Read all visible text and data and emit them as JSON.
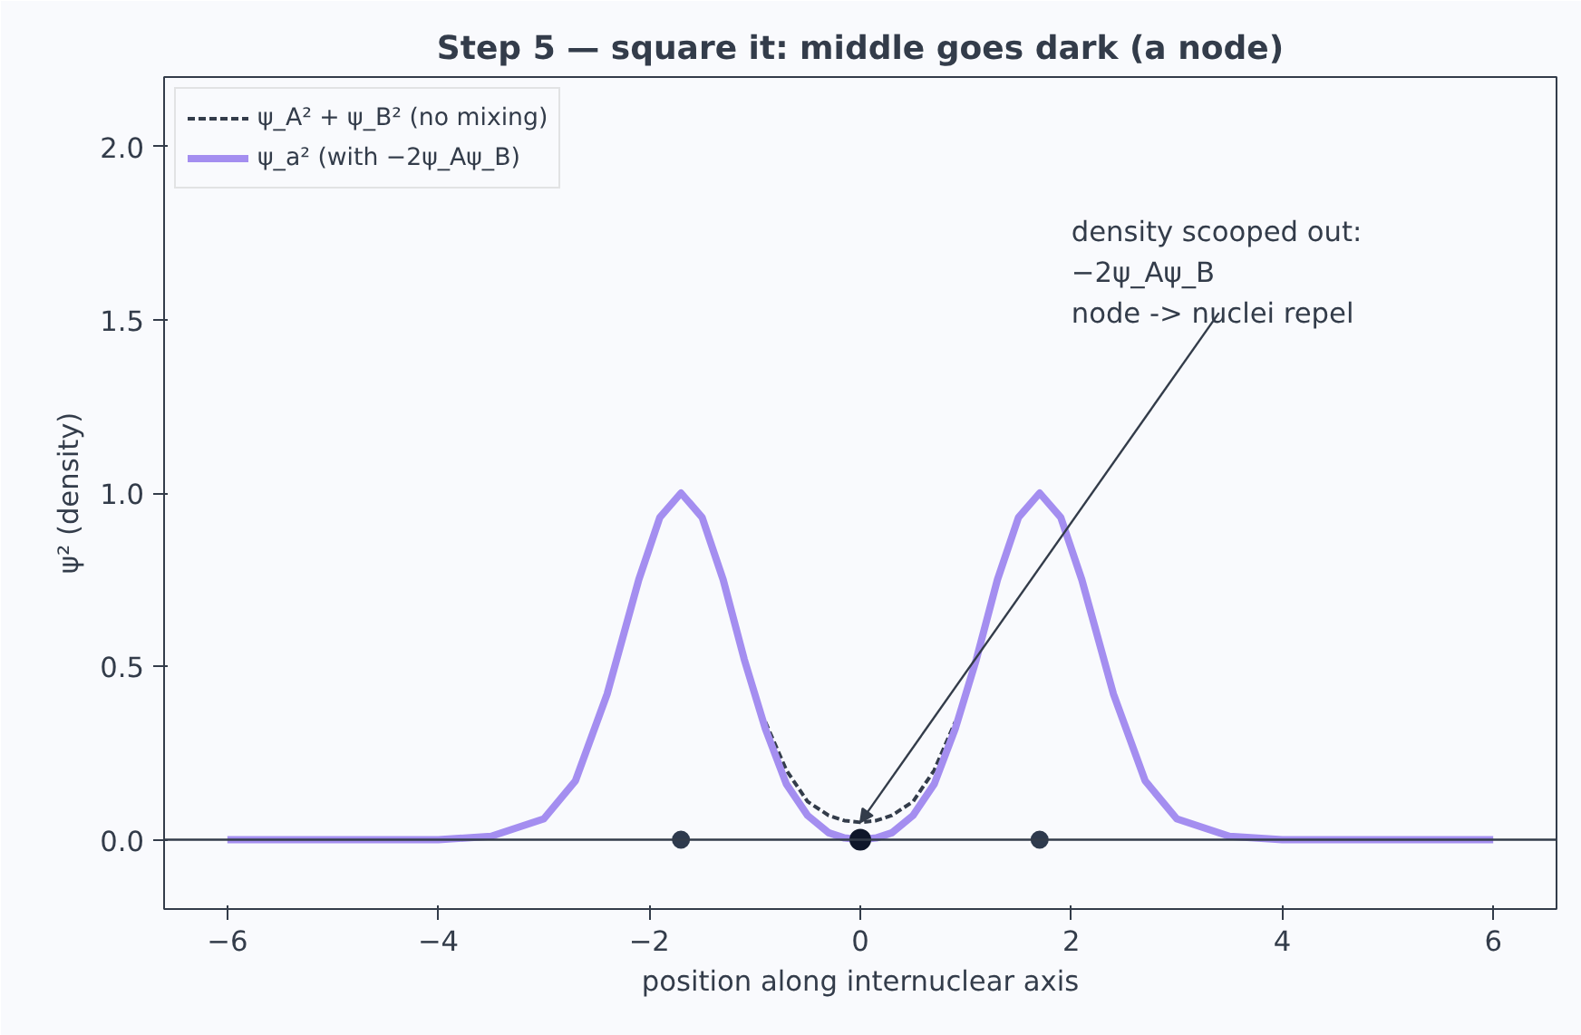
{
  "chart_data": {
    "type": "line",
    "title": "Step 5 — square it: middle goes dark (a node)",
    "xlabel": "position along internuclear axis",
    "ylabel": "ψ² (density)",
    "xlim": [
      -6.6,
      6.6
    ],
    "ylim": [
      -0.2,
      2.2
    ],
    "xticks": [
      {
        "value": -6,
        "label": "−6"
      },
      {
        "value": -4,
        "label": "−4"
      },
      {
        "value": -2,
        "label": "−2"
      },
      0,
      2,
      4,
      6
    ],
    "yticks": [
      {
        "value": 0,
        "label": "0.0"
      },
      0.5,
      {
        "value": 1,
        "label": "1.0"
      },
      1.5,
      {
        "value": 2,
        "label": "2.0"
      }
    ],
    "grid": false,
    "legend": "top left",
    "series": [
      {
        "name": "ψ_A² + ψ_B² (no mixing)",
        "color": "#333c4a",
        "line_style": "dashed",
        "x": [
          -0.9,
          -0.7,
          -0.5,
          -0.3,
          -0.15,
          0,
          0.15,
          0.3,
          0.5,
          0.7,
          0.9
        ],
        "values": [
          0.34,
          0.2,
          0.11,
          0.07,
          0.055,
          0.05,
          0.055,
          0.07,
          0.11,
          0.2,
          0.34
        ]
      },
      {
        "name": "ψ_a² (with −2ψ_Aψ_B)",
        "color": "#a48ef0",
        "line_style": "solid",
        "x": [
          -6,
          -5,
          -4.5,
          -4,
          -3.5,
          -3,
          -2.7,
          -2.4,
          -2.1,
          -1.9,
          -1.7,
          -1.5,
          -1.3,
          -1.1,
          -0.9,
          -0.7,
          -0.5,
          -0.3,
          -0.15,
          0,
          0.15,
          0.3,
          0.5,
          0.7,
          0.9,
          1.1,
          1.3,
          1.5,
          1.7,
          1.9,
          2.1,
          2.4,
          2.7,
          3,
          3.5,
          4,
          4.5,
          5,
          6
        ],
        "values": [
          0,
          0,
          0,
          0,
          0.01,
          0.06,
          0.17,
          0.42,
          0.75,
          0.93,
          1.0,
          0.93,
          0.75,
          0.52,
          0.32,
          0.16,
          0.07,
          0.02,
          0.005,
          0,
          0.005,
          0.02,
          0.07,
          0.16,
          0.32,
          0.52,
          0.75,
          0.93,
          1.0,
          0.93,
          0.75,
          0.42,
          0.17,
          0.06,
          0.01,
          0,
          0,
          0,
          0
        ]
      },
      {
        "type": "scatter",
        "color": "#2e3a4d",
        "marker": "circle",
        "x": [
          -1.7,
          1.7
        ],
        "values": [
          0,
          0
        ]
      },
      {
        "type": "scatter",
        "color": "#0f172a",
        "marker": "circle",
        "x": [
          0
        ],
        "values": [
          0
        ]
      }
    ],
    "ref_lines": [
      {
        "axis": "y",
        "value": 0,
        "color": "#333c4a"
      }
    ],
    "annotations": [
      {
        "text": "density scooped out:\n−2ψ_Aψ_B\nnode -> nuclei repel",
        "x": 0,
        "y": 0.05
      }
    ]
  }
}
